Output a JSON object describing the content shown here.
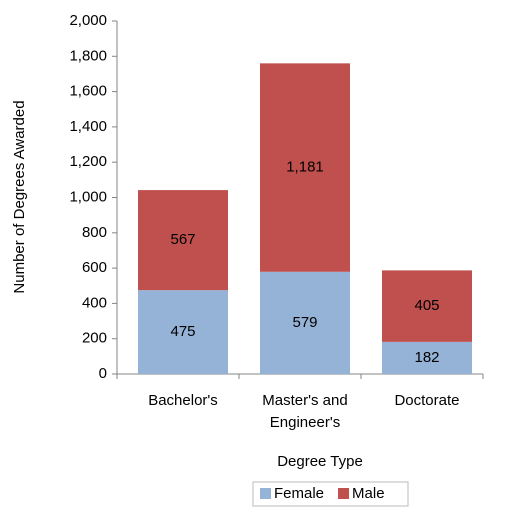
{
  "chart_data": {
    "type": "stacked_bar",
    "categories": [
      "Bachelor's",
      "Master's and Engineer's",
      "Doctorate"
    ],
    "series": [
      {
        "name": "Female",
        "color": "#95b3d7",
        "values": [
          475,
          579,
          182
        ],
        "value_labels": [
          "475",
          "579",
          "182"
        ]
      },
      {
        "name": "Male",
        "color": "#c0504d",
        "values": [
          567,
          1181,
          405
        ],
        "value_labels": [
          "567",
          "1,181",
          "405"
        ]
      }
    ],
    "x_label": "Degree Type",
    "y_label": "Number of Degrees Awarded",
    "ylim": [
      0,
      2000
    ],
    "yticks": [
      0,
      200,
      400,
      600,
      800,
      {
        "value": 1000,
        "label": "1,000"
      },
      {
        "value": 1200,
        "label": "1,200"
      },
      {
        "value": 1400,
        "label": "1,400"
      },
      {
        "value": 1600,
        "label": "1,600"
      },
      {
        "value": 1800,
        "label": "1,800"
      },
      {
        "value": 2000,
        "label": "2,000"
      }
    ],
    "grid": false,
    "legend": "bottom"
  }
}
